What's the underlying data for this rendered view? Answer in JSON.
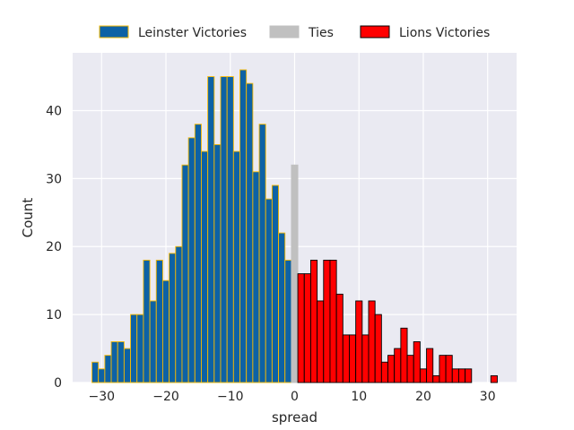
{
  "chart_data": {
    "type": "bar",
    "title": "",
    "xlabel": "spread",
    "ylabel": "Count",
    "xlim": [
      -34.5,
      34.5
    ],
    "ylim": [
      0,
      48.5
    ],
    "xticks": [
      -30,
      -20,
      -10,
      0,
      10,
      20,
      30
    ],
    "yticks": [
      0,
      10,
      20,
      30,
      40
    ],
    "grid": true,
    "legend_position": "top-center",
    "colors": {
      "plot_background": "#eaeaf2",
      "grid": "#ffffff",
      "text": "#262626"
    },
    "series": [
      {
        "name": "Leinster Victories",
        "fill": "#0d62a5",
        "edge": "#f5b800",
        "x": [
          -31,
          -30,
          -29,
          -28,
          -27,
          -26,
          -25,
          -24,
          -23,
          -22,
          -21,
          -20,
          -19,
          -18,
          -17,
          -16,
          -15,
          -14,
          -13,
          -12,
          -11,
          -10,
          -9,
          -8,
          -7,
          -6,
          -5,
          -4,
          -3,
          -2,
          -1
        ],
        "values": [
          3,
          2,
          4,
          6,
          6,
          5,
          10,
          10,
          18,
          12,
          18,
          15,
          19,
          20,
          32,
          36,
          38,
          34,
          45,
          35,
          45,
          45,
          34,
          46,
          44,
          31,
          38,
          27,
          29,
          22,
          18
        ]
      },
      {
        "name": "Ties",
        "fill": "#c0c0c0",
        "edge": "#c0c0c0",
        "x": [
          0
        ],
        "values": [
          32
        ]
      },
      {
        "name": "Lions Victories",
        "fill": "#ff0000",
        "edge": "#000000",
        "x": [
          1,
          2,
          3,
          4,
          5,
          6,
          7,
          8,
          9,
          10,
          11,
          12,
          13,
          14,
          15,
          16,
          17,
          18,
          19,
          20,
          21,
          22,
          23,
          24,
          25,
          26,
          27,
          31
        ],
        "values": [
          16,
          16,
          18,
          12,
          18,
          18,
          13,
          7,
          7,
          12,
          7,
          12,
          10,
          3,
          4,
          5,
          8,
          4,
          6,
          2,
          5,
          1,
          4,
          4,
          2,
          2,
          2,
          1
        ]
      }
    ]
  }
}
